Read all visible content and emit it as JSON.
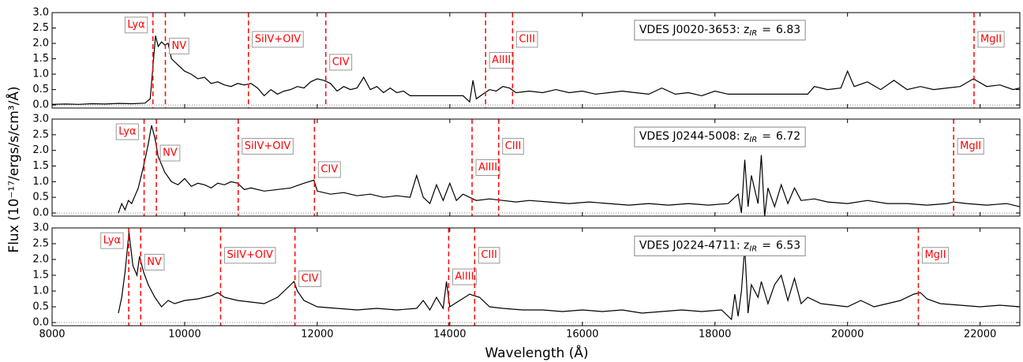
{
  "axis_labels": {
    "x": "Wavelength (Å)",
    "y": "Flux (10⁻¹⁷/ergs/s/cm³/Å)"
  },
  "chart_data": [
    {
      "type": "line",
      "color": "#000000",
      "line_color": "#ff0000",
      "annotation_prefix": "VDES J0020-3653: z",
      "annotation_sub": "IR",
      "annotation_eq": "=",
      "redshift": 6.83,
      "xlim": [
        8000,
        22600
      ],
      "ylim": [
        -0.1,
        3.0
      ],
      "show_xtick_labels": false,
      "xticks": [
        8000,
        10000,
        12000,
        14000,
        16000,
        18000,
        20000,
        22000
      ],
      "yticks": [
        {
          "value": 0,
          "label": "0.0"
        },
        {
          "value": 0.5,
          "label": "0.5"
        },
        {
          "value": 1,
          "label": "1.0"
        },
        {
          "value": 1.5,
          "label": "1.5"
        },
        {
          "value": 2,
          "label": "2.0"
        },
        {
          "value": 2.5,
          "label": "2.5"
        },
        {
          "value": 3,
          "label": "3.0"
        }
      ],
      "lines": [
        {
          "label": "Lyα",
          "x": 9521
        },
        {
          "label": "NV",
          "x": 9709
        },
        {
          "label": "SiIV+OIV",
          "x": 10962
        },
        {
          "label": "CIV",
          "x": 12129
        },
        {
          "label": "AlIII",
          "x": 14540
        },
        {
          "label": "CIII",
          "x": 14947
        },
        {
          "label": "MgII",
          "x": 21909
        }
      ],
      "x": [
        8000,
        8200,
        8400,
        8600,
        8800,
        9000,
        9200,
        9400,
        9480,
        9520,
        9560,
        9600,
        9650,
        9700,
        9750,
        9800,
        9900,
        10000,
        10100,
        10200,
        10300,
        10400,
        10500,
        10600,
        10700,
        10800,
        10900,
        11000,
        11100,
        11200,
        11300,
        11400,
        11500,
        11600,
        11700,
        11800,
        11900,
        12000,
        12100,
        12200,
        12300,
        12400,
        12500,
        12600,
        12700,
        12800,
        12900,
        13000,
        13100,
        13200,
        13300,
        13400,
        13800,
        14200,
        14300,
        14350,
        14400,
        14500,
        14600,
        14700,
        14800,
        14900,
        15000,
        15200,
        15400,
        15600,
        15800,
        16000,
        16200,
        16400,
        16600,
        16800,
        17000,
        17200,
        17400,
        17600,
        17800,
        18000,
        18200,
        19400,
        19500,
        19700,
        19900,
        20000,
        20100,
        20300,
        20500,
        20700,
        20900,
        21100,
        21300,
        21500,
        21700,
        21900,
        22100,
        22300,
        22500,
        22600
      ],
      "values": [
        0.02,
        0.03,
        0.02,
        0.04,
        0.03,
        0.05,
        0.04,
        0.06,
        0.2,
        1.2,
        2.25,
        1.9,
        2.05,
        1.95,
        2.0,
        1.5,
        1.3,
        1.1,
        1.0,
        0.85,
        0.9,
        0.7,
        0.75,
        0.65,
        0.6,
        0.7,
        0.65,
        0.7,
        0.55,
        0.3,
        0.5,
        0.35,
        0.45,
        0.5,
        0.6,
        0.55,
        0.75,
        0.85,
        0.8,
        0.7,
        0.45,
        0.6,
        0.5,
        0.55,
        0.9,
        0.5,
        0.6,
        0.4,
        0.55,
        0.4,
        0.45,
        0.3,
        0.3,
        0.3,
        0.1,
        0.8,
        0.2,
        0.35,
        0.5,
        0.45,
        0.6,
        0.55,
        0.4,
        0.45,
        0.4,
        0.5,
        0.4,
        0.45,
        0.35,
        0.4,
        0.45,
        0.4,
        0.35,
        0.55,
        0.35,
        0.4,
        0.3,
        0.45,
        0.35,
        0.35,
        0.6,
        0.5,
        0.55,
        1.1,
        0.6,
        0.75,
        0.5,
        0.8,
        0.5,
        0.6,
        0.5,
        0.55,
        0.6,
        0.85,
        0.6,
        0.65,
        0.5,
        0.55
      ]
    },
    {
      "type": "line",
      "color": "#000000",
      "line_color": "#ff0000",
      "annotation_prefix": "VDES J0244-5008: z",
      "annotation_sub": "IR",
      "annotation_eq": "=",
      "redshift": 6.72,
      "xlim": [
        8000,
        22600
      ],
      "ylim": [
        -0.1,
        3.0
      ],
      "show_xtick_labels": false,
      "xticks": [
        8000,
        10000,
        12000,
        14000,
        16000,
        18000,
        20000,
        22000
      ],
      "yticks": [
        {
          "value": 0,
          "label": "0.0"
        },
        {
          "value": 0.5,
          "label": "0.5"
        },
        {
          "value": 1,
          "label": "1.0"
        },
        {
          "value": 1.5,
          "label": "1.5"
        },
        {
          "value": 2,
          "label": "2.0"
        },
        {
          "value": 2.5,
          "label": "2.5"
        },
        {
          "value": 3,
          "label": "3.0"
        }
      ],
      "lines": [
        {
          "label": "Lyα",
          "x": 9388
        },
        {
          "label": "NV",
          "x": 9573
        },
        {
          "label": "SiIV+OIV",
          "x": 10808
        },
        {
          "label": "CIV",
          "x": 11958
        },
        {
          "label": "AlIII",
          "x": 14336
        },
        {
          "label": "CIII",
          "x": 14737
        },
        {
          "label": "MgII",
          "x": 21601
        }
      ],
      "x": [
        9000,
        9050,
        9100,
        9150,
        9200,
        9300,
        9380,
        9450,
        9500,
        9550,
        9600,
        9700,
        9800,
        9900,
        10000,
        10100,
        10200,
        10300,
        10400,
        10500,
        10600,
        10700,
        10800,
        10900,
        11000,
        11200,
        11400,
        11600,
        11800,
        11950,
        12000,
        12200,
        12400,
        12600,
        12800,
        13000,
        13200,
        13400,
        13500,
        13600,
        13700,
        13800,
        13900,
        14000,
        14100,
        14200,
        14400,
        14600,
        14800,
        15000,
        15200,
        15500,
        15800,
        16100,
        16400,
        16700,
        17000,
        17300,
        17600,
        17900,
        18200,
        18350,
        18400,
        18450,
        18500,
        18550,
        18650,
        18700,
        18750,
        18800,
        18900,
        19000,
        19100,
        19200,
        19300,
        19500,
        19700,
        20000,
        20300,
        20600,
        20900,
        21200,
        21500,
        21600,
        21800,
        22100,
        22400,
        22600
      ],
      "values": [
        0.0,
        0.3,
        0.1,
        0.4,
        0.3,
        0.8,
        1.5,
        2.2,
        2.8,
        2.4,
        1.8,
        1.3,
        1.0,
        0.9,
        1.1,
        0.85,
        0.95,
        0.9,
        0.8,
        0.95,
        0.9,
        1.0,
        0.95,
        0.75,
        0.8,
        0.7,
        0.75,
        0.8,
        0.95,
        1.05,
        0.7,
        0.6,
        0.65,
        0.55,
        0.6,
        0.5,
        0.55,
        0.5,
        1.2,
        0.5,
        0.3,
        0.9,
        0.4,
        0.95,
        0.4,
        0.6,
        0.4,
        0.45,
        0.4,
        0.35,
        0.4,
        0.35,
        0.3,
        0.35,
        0.3,
        0.25,
        0.3,
        0.25,
        0.3,
        0.25,
        0.3,
        0.6,
        0.0,
        1.7,
        0.2,
        1.2,
        0.3,
        1.85,
        -0.1,
        0.8,
        0.2,
        0.9,
        0.3,
        0.8,
        0.4,
        0.45,
        0.35,
        0.3,
        0.4,
        0.3,
        0.3,
        0.25,
        0.3,
        0.35,
        0.3,
        0.25,
        0.3,
        0.2
      ]
    },
    {
      "type": "line",
      "color": "#000000",
      "line_color": "#ff0000",
      "annotation_prefix": "VDES J0224-4711: z",
      "annotation_sub": "IR",
      "annotation_eq": "=",
      "redshift": 6.53,
      "xlim": [
        8000,
        22600
      ],
      "ylim": [
        -0.1,
        3.0
      ],
      "show_xtick_labels": true,
      "xticks": [
        8000,
        10000,
        12000,
        14000,
        16000,
        18000,
        20000,
        22000
      ],
      "yticks": [
        {
          "value": 0,
          "label": "0.0"
        },
        {
          "value": 0.5,
          "label": "0.5"
        },
        {
          "value": 1,
          "label": "1.0"
        },
        {
          "value": 1.5,
          "label": "1.5"
        },
        {
          "value": 2,
          "label": "2.0"
        },
        {
          "value": 2.5,
          "label": "2.5"
        },
        {
          "value": 3,
          "label": "3.0"
        }
      ],
      "lines": [
        {
          "label": "Lyα",
          "x": 9156
        },
        {
          "label": "NV",
          "x": 9337
        },
        {
          "label": "SiIV+OIV",
          "x": 10542
        },
        {
          "label": "CIV",
          "x": 11664
        },
        {
          "label": "AlIII",
          "x": 13983
        },
        {
          "label": "CIII",
          "x": 14375
        },
        {
          "label": "MgII",
          "x": 21069
        }
      ],
      "x": [
        9000,
        9050,
        9100,
        9160,
        9220,
        9280,
        9320,
        9380,
        9450,
        9550,
        9650,
        9750,
        9850,
        10000,
        10200,
        10400,
        10500,
        10600,
        10800,
        11000,
        11200,
        11400,
        11600,
        11650,
        11700,
        11800,
        12000,
        12300,
        12600,
        12900,
        13200,
        13500,
        13600,
        13700,
        13800,
        13900,
        13950,
        14000,
        14150,
        14300,
        14450,
        14600,
        14800,
        15100,
        15400,
        15700,
        16000,
        16300,
        16600,
        16900,
        17200,
        17500,
        17800,
        18100,
        18250,
        18300,
        18350,
        18400,
        18450,
        18500,
        18550,
        18650,
        18700,
        18800,
        18900,
        19000,
        19100,
        19200,
        19300,
        19400,
        19600,
        19800,
        20000,
        20200,
        20400,
        20600,
        20800,
        21000,
        21100,
        21200,
        21400,
        21700,
        22000,
        22300,
        22600
      ],
      "values": [
        0.3,
        0.8,
        1.6,
        2.85,
        1.8,
        1.5,
        2.1,
        1.6,
        1.2,
        0.8,
        0.5,
        0.7,
        0.6,
        0.7,
        0.75,
        0.85,
        0.95,
        0.8,
        0.7,
        0.65,
        0.6,
        0.8,
        1.2,
        1.3,
        1.0,
        0.7,
        0.5,
        0.45,
        0.4,
        0.45,
        0.4,
        0.45,
        0.7,
        0.4,
        0.8,
        0.45,
        1.3,
        0.5,
        0.7,
        0.9,
        0.8,
        0.5,
        0.45,
        0.4,
        0.4,
        0.35,
        0.4,
        0.35,
        0.4,
        0.3,
        0.35,
        0.4,
        0.35,
        0.4,
        0.1,
        0.9,
        0.2,
        1.0,
        2.4,
        0.3,
        1.2,
        0.8,
        1.3,
        0.6,
        1.2,
        1.5,
        0.7,
        1.4,
        0.6,
        0.8,
        0.6,
        0.55,
        0.5,
        0.7,
        0.5,
        0.6,
        0.7,
        0.9,
        0.95,
        0.75,
        0.6,
        0.55,
        0.5,
        0.55,
        0.5
      ]
    }
  ]
}
